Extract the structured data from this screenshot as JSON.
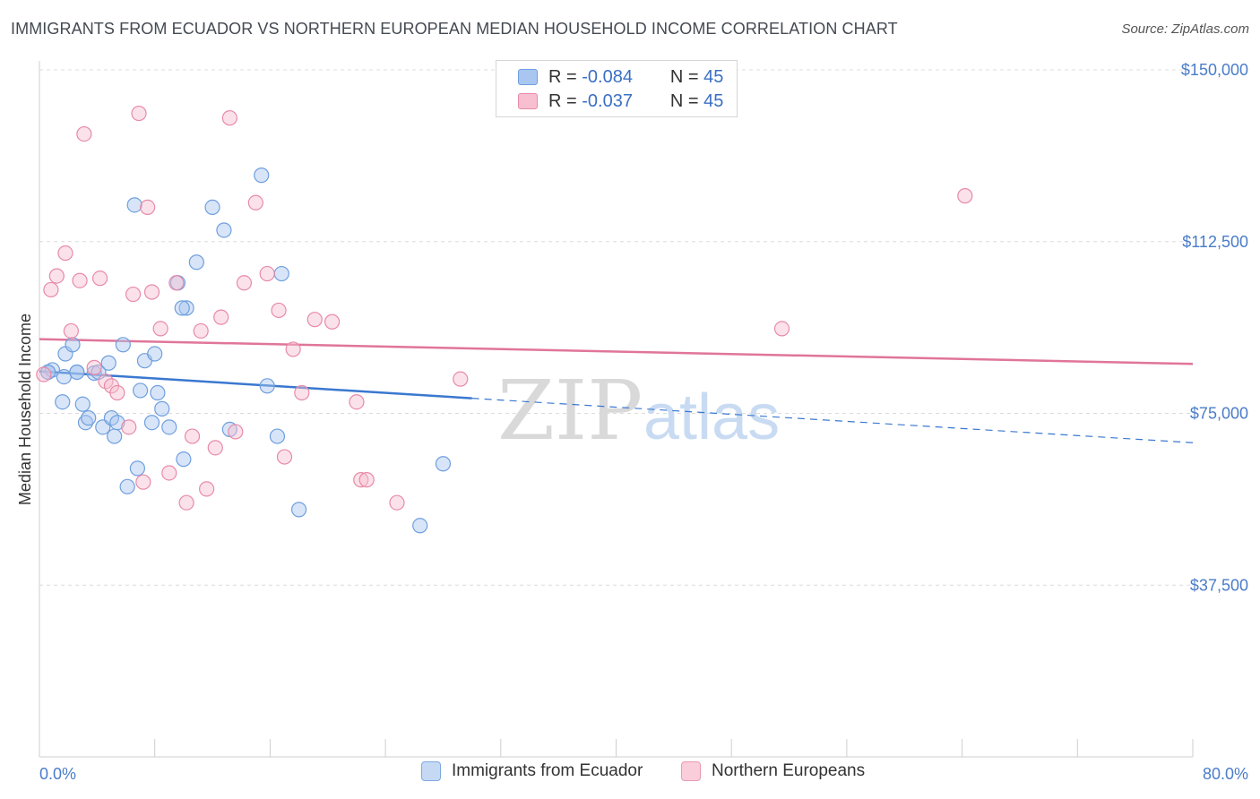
{
  "title": "IMMIGRANTS FROM ECUADOR VS NORTHERN EUROPEAN MEDIAN HOUSEHOLD INCOME CORRELATION CHART",
  "source": "Source: ZipAtlas.com",
  "watermark": {
    "zip": "ZIP",
    "atlas": "atlas"
  },
  "legend": {
    "series": [
      {
        "r_label": "R =",
        "r_value": "-0.084",
        "n_label": "N =",
        "n_value": "45",
        "color": "#a8c6f0",
        "border": "#6f9fde"
      },
      {
        "r_label": "R =",
        "r_value": "-0.037",
        "n_label": "N =",
        "n_value": "45",
        "color": "#f7bfd0",
        "border": "#e88aa8"
      }
    ]
  },
  "bottom_legend": [
    {
      "label": "Immigrants from Ecuador",
      "color": "#c5d9f5",
      "border": "#7ea8e0"
    },
    {
      "label": "Northern Europeans",
      "color": "#f9cdd9",
      "border": "#e99ab3"
    }
  ],
  "chart_data": {
    "type": "scatter",
    "ylabel": "Median Household Income",
    "xlim": [
      0,
      80
    ],
    "ylim": [
      0,
      150000
    ],
    "yticks": [
      {
        "value": 37500,
        "label": "$37,500"
      },
      {
        "value": 75000,
        "label": "$75,000"
      },
      {
        "value": 112500,
        "label": "$112,500"
      },
      {
        "value": 150000,
        "label": "$150,000"
      }
    ],
    "xtick_labels": {
      "min": "0.0%",
      "max": "80.0%"
    },
    "series": [
      {
        "name": "Immigrants from Ecuador",
        "color": "#6f9fde",
        "fill": "#a8c6f0",
        "trend": {
          "x0": 0,
          "y0": 84200,
          "x1": 30,
          "y1": 78300,
          "dash_to_x": 80,
          "dash_to_y": 68600,
          "color": "#3a78d0"
        },
        "points": [
          [
            0.6,
            84000
          ],
          [
            0.9,
            84500
          ],
          [
            1.6,
            77500
          ],
          [
            1.7,
            83000
          ],
          [
            1.8,
            88000
          ],
          [
            2.3,
            90000
          ],
          [
            2.6,
            84000
          ],
          [
            3.0,
            77000
          ],
          [
            3.2,
            73000
          ],
          [
            3.4,
            74000
          ],
          [
            3.8,
            83800
          ],
          [
            4.1,
            84000
          ],
          [
            4.4,
            72000
          ],
          [
            4.8,
            86000
          ],
          [
            5.0,
            74000
          ],
          [
            5.2,
            70000
          ],
          [
            5.4,
            73000
          ],
          [
            5.8,
            90000
          ],
          [
            6.1,
            59000
          ],
          [
            6.8,
            63000
          ],
          [
            7.0,
            80000
          ],
          [
            7.3,
            86500
          ],
          [
            7.8,
            73000
          ],
          [
            8.0,
            88000
          ],
          [
            8.2,
            79500
          ],
          [
            8.5,
            76000
          ],
          [
            9.0,
            72000
          ],
          [
            9.6,
            103500
          ],
          [
            10.0,
            65000
          ],
          [
            10.2,
            98000
          ],
          [
            10.9,
            108000
          ],
          [
            12.0,
            120000
          ],
          [
            12.8,
            115000
          ],
          [
            13.2,
            71500
          ],
          [
            15.4,
            127000
          ],
          [
            15.8,
            81000
          ],
          [
            16.5,
            70000
          ],
          [
            16.8,
            105500
          ],
          [
            18.0,
            54000
          ],
          [
            26.4,
            50500
          ],
          [
            28.0,
            64000
          ],
          [
            9.9,
            98000
          ],
          [
            6.6,
            120500
          ],
          [
            2.6,
            84000
          ],
          [
            0.6,
            84000
          ]
        ]
      },
      {
        "name": "Northern Europeans",
        "color": "#e88aa8",
        "fill": "#f7bfd0",
        "trend": {
          "x0": 0,
          "y0": 91200,
          "x1": 80,
          "y1": 85800,
          "color": "#e0759a"
        },
        "points": [
          [
            0.3,
            83500
          ],
          [
            0.8,
            102000
          ],
          [
            1.2,
            105000
          ],
          [
            1.8,
            110000
          ],
          [
            2.2,
            93000
          ],
          [
            2.8,
            104000
          ],
          [
            3.1,
            136000
          ],
          [
            3.8,
            85000
          ],
          [
            4.2,
            104500
          ],
          [
            4.6,
            82000
          ],
          [
            5.0,
            81000
          ],
          [
            5.4,
            79500
          ],
          [
            6.2,
            72000
          ],
          [
            6.5,
            101000
          ],
          [
            6.9,
            140500
          ],
          [
            7.2,
            60000
          ],
          [
            7.5,
            120000
          ],
          [
            7.8,
            101500
          ],
          [
            8.4,
            93500
          ],
          [
            9.0,
            62000
          ],
          [
            9.5,
            103500
          ],
          [
            10.2,
            55500
          ],
          [
            10.6,
            70000
          ],
          [
            11.2,
            93000
          ],
          [
            11.6,
            58500
          ],
          [
            12.2,
            67500
          ],
          [
            12.6,
            96000
          ],
          [
            13.2,
            139500
          ],
          [
            13.6,
            71000
          ],
          [
            14.2,
            103500
          ],
          [
            15.0,
            121000
          ],
          [
            15.8,
            105500
          ],
          [
            16.6,
            97500
          ],
          [
            17.0,
            65500
          ],
          [
            17.6,
            89000
          ],
          [
            18.2,
            79500
          ],
          [
            19.1,
            95500
          ],
          [
            20.3,
            95000
          ],
          [
            22.0,
            77500
          ],
          [
            22.3,
            60500
          ],
          [
            22.7,
            60500
          ],
          [
            24.8,
            55500
          ],
          [
            29.2,
            82500
          ],
          [
            51.5,
            93500
          ],
          [
            64.2,
            122500
          ]
        ]
      }
    ]
  }
}
